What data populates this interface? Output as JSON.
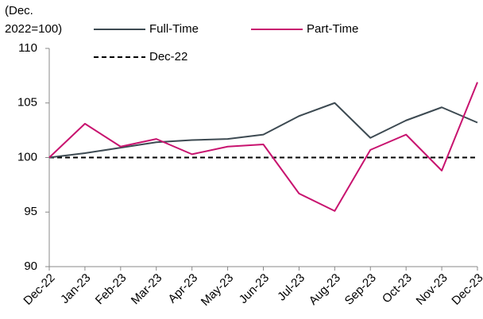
{
  "chart_data": {
    "type": "line",
    "ylabel": [
      "(Dec.",
      "2022=100)"
    ],
    "categories": [
      "Dec-22",
      "Jan-23",
      "Feb-23",
      "Mar-23",
      "Apr-23",
      "May-23",
      "Jun-23",
      "Jul-23",
      "Aug-23",
      "Sep-23",
      "Oct-23",
      "Nov-23",
      "Dec-23"
    ],
    "series": [
      {
        "name": "Full-Time",
        "color": "#3d4a52",
        "values": [
          100,
          100.4,
          100.9,
          101.4,
          101.6,
          101.7,
          102.1,
          103.8,
          105.0,
          101.8,
          103.4,
          104.6,
          103.2
        ]
      },
      {
        "name": "Part-Time",
        "color": "#c8136f",
        "values": [
          100,
          103.1,
          101.0,
          101.7,
          100.3,
          101.0,
          101.2,
          96.7,
          95.1,
          100.7,
          102.1,
          98.8,
          106.9
        ]
      }
    ],
    "reference_line": {
      "name": "Dec-22",
      "value": 100,
      "color": "#000000",
      "dashed": true
    },
    "ylim": [
      90,
      110
    ],
    "yticks": [
      90,
      95,
      100,
      105,
      110
    ]
  }
}
